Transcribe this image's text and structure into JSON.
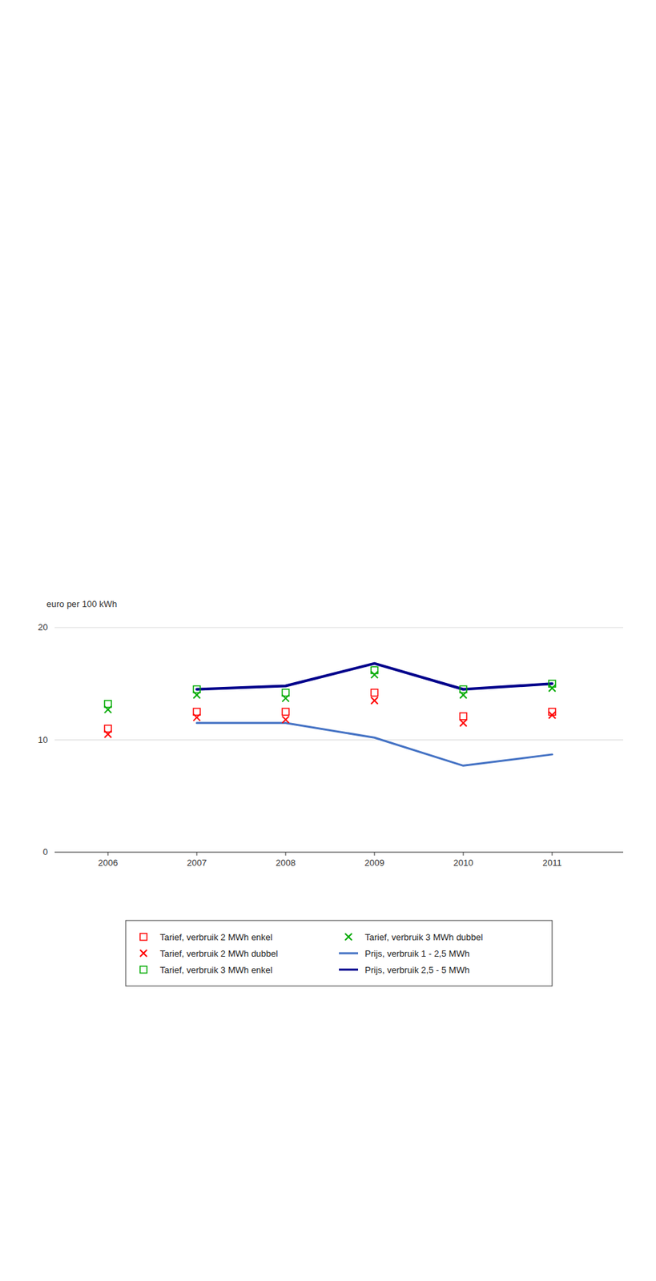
{
  "chart_data": {
    "type": "line",
    "y_label": "euro per 100 kWh",
    "x": [
      2006,
      2007,
      2008,
      2009,
      2010,
      2011
    ],
    "xlim": [
      2005.4,
      2011.8
    ],
    "xticks": [
      2006,
      2007,
      2008,
      2009,
      2010,
      2011
    ],
    "ylim": [
      0,
      20
    ],
    "yticks": [
      0,
      10,
      20
    ],
    "grid": true,
    "legend": "bottom",
    "series": [
      {
        "name": "Tarief, verbruik 2 MWh enkel",
        "type": "scatter",
        "marker": "square",
        "color": "#FF0000",
        "values": [
          11.0,
          12.5,
          12.5,
          14.2,
          12.1,
          12.5
        ]
      },
      {
        "name": "Tarief, verbruik 2 MWh dubbel",
        "type": "scatter",
        "marker": "x",
        "color": "#FF0000",
        "values": [
          10.5,
          12.0,
          11.8,
          13.5,
          11.5,
          12.2
        ]
      },
      {
        "name": "Tarief, verbruik 3 MWh enkel",
        "type": "scatter",
        "marker": "square",
        "color": "#00AA00",
        "values": [
          13.2,
          14.5,
          14.2,
          16.2,
          14.5,
          15.0
        ]
      },
      {
        "name": "Tarief, verbruik 3 MWh dubbel",
        "type": "scatter",
        "marker": "x",
        "color": "#00AA00",
        "values": [
          12.7,
          14.0,
          13.7,
          15.8,
          14.0,
          14.6
        ]
      },
      {
        "name": "Prijs, verbruik 1 - 2,5 MWh",
        "type": "line",
        "line_style": "solid",
        "color": "#4472C4",
        "values": [
          null,
          11.5,
          11.5,
          10.2,
          7.7,
          8.7
        ]
      },
      {
        "name": "Prijs, verbruik 2,5 - 5 MWh",
        "type": "line",
        "line_style": "solid",
        "color": "#00008B",
        "values": [
          null,
          14.5,
          14.8,
          16.8,
          14.5,
          15.0
        ]
      }
    ]
  }
}
